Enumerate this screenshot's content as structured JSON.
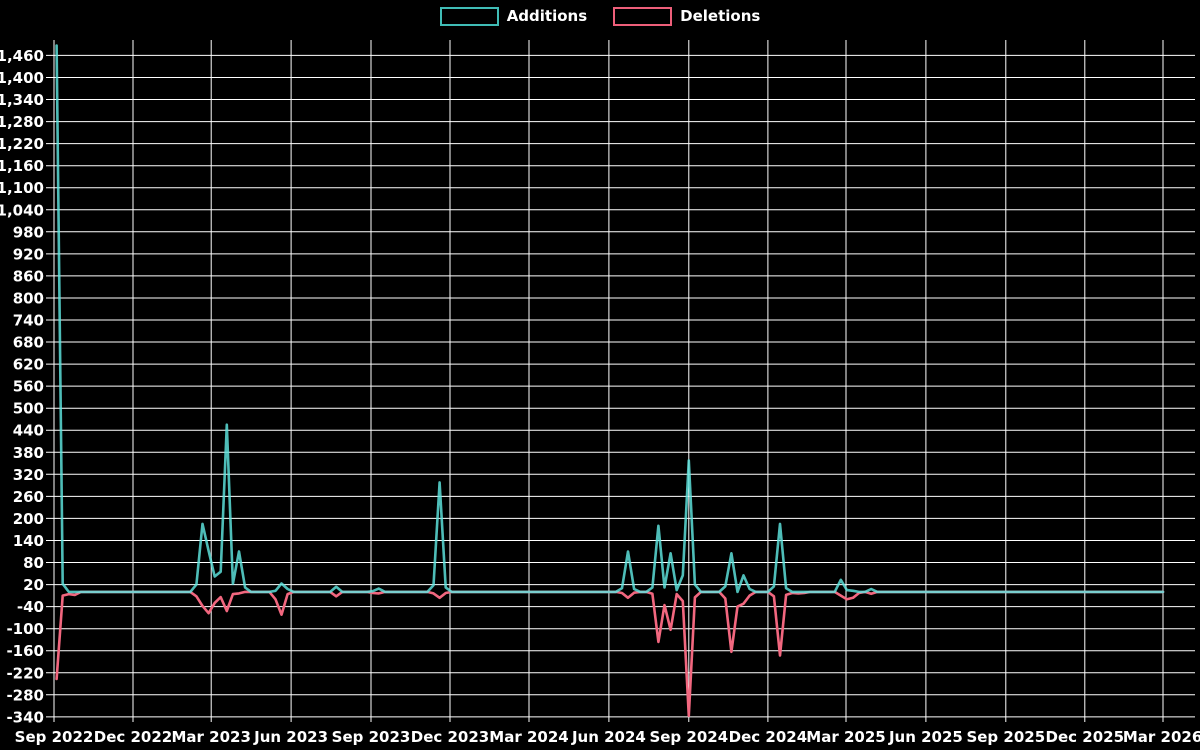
{
  "page": {
    "background": "#000000",
    "grid_color": "#ffffff",
    "text_color": "#ffffff"
  },
  "legend": {
    "items": [
      {
        "label": "Additions",
        "color": "#40bcb6"
      },
      {
        "label": "Deletions",
        "color": "#ee5f7a"
      }
    ]
  },
  "chart_data": {
    "type": "line",
    "title": "",
    "xlabel": "",
    "ylabel": "",
    "grid": true,
    "legend_position": "top-center",
    "background": "#000000",
    "interval": "weekly",
    "data_start": "2022-09-04",
    "data_end": "2026-03-01",
    "default_value": 0,
    "x_axis": {
      "start": "2022-09-01",
      "end": "2026-03-01",
      "tick_interval_months": 3,
      "tick_labels": [
        "Sep 2022",
        "Dec 2022",
        "Mar 2023",
        "Jun 2023",
        "Sep 2023",
        "Dec 2023",
        "Mar 2024",
        "Jun 2024",
        "Sep 2024",
        "Dec 2024",
        "Mar 2025",
        "Jun 2025",
        "Sep 2025",
        "Dec 2025",
        "Mar 2026"
      ]
    },
    "y_axis": {
      "min": -354,
      "max": 1502,
      "tick_min": -340,
      "tick_max": 1460,
      "tick_step": 60,
      "tick_values": [
        1460,
        1400,
        1340,
        1280,
        1220,
        1160,
        1100,
        1040,
        980,
        920,
        860,
        800,
        740,
        680,
        620,
        560,
        500,
        440,
        380,
        320,
        260,
        200,
        140,
        80,
        20,
        -40,
        -100,
        -160,
        -220,
        -280,
        -340
      ]
    },
    "series": [
      {
        "name": "Additions",
        "color": "#5fe6e0",
        "opacity": 0.82,
        "nonzero_weeks": {
          "2022-09-04": 1487,
          "2022-09-11": 22,
          "2023-02-12": 20,
          "2023-02-19": 185,
          "2023-02-26": 112,
          "2023-03-05": 42,
          "2023-03-12": 55,
          "2023-03-19": 455,
          "2023-03-26": 22,
          "2023-04-02": 110,
          "2023-04-09": 12,
          "2023-05-14": 3,
          "2023-05-21": 23,
          "2023-05-28": 8,
          "2023-07-23": 14,
          "2023-09-03": 2,
          "2023-09-10": 9,
          "2023-11-12": 18,
          "2023-11-19": 298,
          "2023-11-26": 12,
          "2024-06-16": 10,
          "2024-06-23": 110,
          "2024-06-30": 8,
          "2024-07-21": 12,
          "2024-07-28": 180,
          "2024-08-04": 12,
          "2024-08-11": 105,
          "2024-08-18": 5,
          "2024-08-25": 45,
          "2024-09-01": 358,
          "2024-09-08": 20,
          "2024-10-13": 15,
          "2024-10-20": 105,
          "2024-11-03": 45,
          "2024-11-10": 8,
          "2024-12-08": 15,
          "2024-12-15": 185,
          "2024-12-22": 10,
          "2025-02-23": 33,
          "2025-03-02": 5,
          "2025-03-09": 3,
          "2025-03-30": 8
        }
      },
      {
        "name": "Deletions",
        "color": "#f2677f",
        "opacity": 1,
        "nonzero_weeks": {
          "2022-09-04": -237,
          "2022-09-11": -10,
          "2022-09-18": -6,
          "2022-09-25": -8,
          "2023-02-12": -12,
          "2023-02-19": -38,
          "2023-02-26": -58,
          "2023-03-05": -30,
          "2023-03-12": -14,
          "2023-03-19": -52,
          "2023-03-26": -6,
          "2023-04-02": -4,
          "2023-05-14": -20,
          "2023-05-21": -62,
          "2023-05-28": -6,
          "2023-07-23": -12,
          "2023-09-03": -3,
          "2023-09-10": -4,
          "2023-11-12": -4,
          "2023-11-19": -16,
          "2023-11-26": -3,
          "2024-06-16": -3,
          "2024-06-23": -16,
          "2024-06-30": -2,
          "2024-07-21": -5,
          "2024-07-28": -136,
          "2024-08-04": -36,
          "2024-08-11": -103,
          "2024-08-18": -6,
          "2024-08-25": -25,
          "2024-09-01": -337,
          "2024-09-08": -15,
          "2024-10-13": -18,
          "2024-10-20": -163,
          "2024-10-27": -40,
          "2024-11-03": -32,
          "2024-11-10": -10,
          "2024-12-08": -12,
          "2024-12-15": -173,
          "2024-12-22": -8,
          "2024-12-29": -3,
          "2025-01-05": -4,
          "2025-01-12": -3,
          "2025-02-23": -10,
          "2025-03-02": -20,
          "2025-03-09": -16,
          "2025-03-16": -3,
          "2025-03-30": -5
        }
      }
    ]
  }
}
